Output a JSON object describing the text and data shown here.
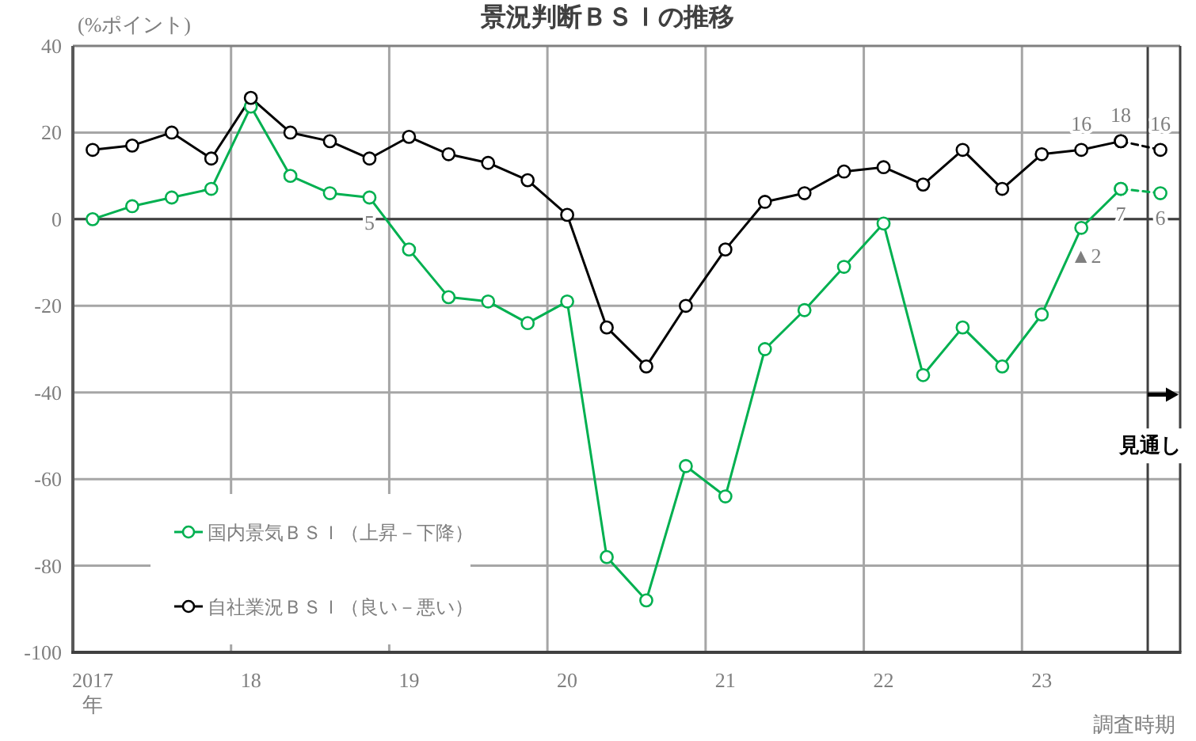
{
  "chart_data": {
    "type": "line",
    "title": "景況判断ＢＳＩの推移",
    "ylabel": "(%ポイント)",
    "xlabel": "調査時期",
    "xlim": [
      2016.875,
      2023.875
    ],
    "xticks": [
      {
        "value": 2017,
        "label": "2017\n年"
      },
      {
        "value": 2018,
        "label": "18"
      },
      {
        "value": 2019,
        "label": "19"
      },
      {
        "value": 2020,
        "label": "20"
      },
      {
        "value": 2021,
        "label": "21"
      },
      {
        "value": 2022,
        "label": "22"
      },
      {
        "value": 2023,
        "label": "23"
      }
    ],
    "ylim": [
      -100,
      40
    ],
    "yticks": [
      -100,
      -80,
      -60,
      -40,
      -20,
      0,
      20,
      40
    ],
    "grid": "y",
    "legend": "bottom left",
    "marker": "circle",
    "ref_lines": [
      {
        "axis": "x",
        "value": 2017.875,
        "color": "#a6a6a6"
      },
      {
        "axis": "x",
        "value": 2018.875,
        "color": "#a6a6a6"
      },
      {
        "axis": "x",
        "value": 2019.875,
        "color": "#a6a6a6"
      },
      {
        "axis": "x",
        "value": 2020.875,
        "color": "#a6a6a6"
      },
      {
        "axis": "x",
        "value": 2021.875,
        "color": "#a6a6a6"
      },
      {
        "axis": "x",
        "value": 2022.875,
        "color": "#a6a6a6"
      },
      {
        "axis": "y",
        "value": 0,
        "color": "#404040"
      },
      {
        "axis": "x",
        "value": 2023.67,
        "label": "見通し",
        "color": "#404040"
      }
    ],
    "annotations": [
      {
        "text": "▲2",
        "x": 2023.25,
        "y": -2
      }
    ],
    "series": [
      {
        "name": "国内景気ＢＳＩ（上昇－下降）",
        "color": "#00b050",
        "x": [
          2017,
          2017.25,
          2017.5,
          2017.75,
          2018,
          2018.25,
          2018.5,
          2018.75,
          2019,
          2019.25,
          2019.5,
          2019.75,
          2020,
          2020.25,
          2020.5,
          2020.75,
          2021,
          2021.25,
          2021.5,
          2021.75,
          2022,
          2022.25,
          2022.5,
          2022.75,
          2023,
          2023.25,
          2023.5
        ],
        "values": [
          0,
          3,
          5,
          7,
          26,
          10,
          6,
          5,
          -7,
          -18,
          -19,
          -24,
          -19,
          -78,
          -88,
          -57,
          -64,
          -30,
          -21,
          -11,
          -1,
          -36,
          -25,
          -34,
          -22,
          -2,
          7
        ],
        "value_labels": [
          null,
          null,
          null,
          null,
          null,
          null,
          null,
          "5",
          null,
          null,
          null,
          null,
          null,
          null,
          null,
          null,
          null,
          null,
          null,
          null,
          null,
          null,
          null,
          null,
          null,
          null,
          "7"
        ]
      },
      {
        "name": "自社業況ＢＳＩ（良い－悪い）",
        "color": "#000000",
        "x": [
          2017,
          2017.25,
          2017.5,
          2017.75,
          2018,
          2018.25,
          2018.5,
          2018.75,
          2019,
          2019.25,
          2019.5,
          2019.75,
          2020,
          2020.25,
          2020.5,
          2020.75,
          2021,
          2021.25,
          2021.5,
          2021.75,
          2022,
          2022.25,
          2022.5,
          2022.75,
          2023,
          2023.25,
          2023.5
        ],
        "values": [
          16,
          17,
          20,
          14,
          28,
          20,
          18,
          14,
          19,
          15,
          13,
          9,
          1,
          -25,
          -34,
          -20,
          -7,
          4,
          6,
          11,
          12,
          8,
          16,
          7,
          15,
          16,
          18
        ],
        "value_labels": [
          null,
          null,
          null,
          null,
          null,
          null,
          null,
          null,
          null,
          null,
          null,
          null,
          null,
          null,
          null,
          null,
          null,
          null,
          null,
          null,
          null,
          null,
          null,
          null,
          null,
          "16",
          "18"
        ]
      },
      {
        "color": "#00b050",
        "x": [
          2023.5,
          2023.75
        ],
        "values": [
          7,
          6
        ],
        "line_style": "dashed",
        "value_labels": [
          null,
          "6"
        ]
      },
      {
        "color": "#000000",
        "x": [
          2023.5,
          2023.75
        ],
        "values": [
          18,
          16
        ],
        "line_style": "dashed",
        "value_labels": [
          null,
          "16"
        ]
      }
    ]
  }
}
